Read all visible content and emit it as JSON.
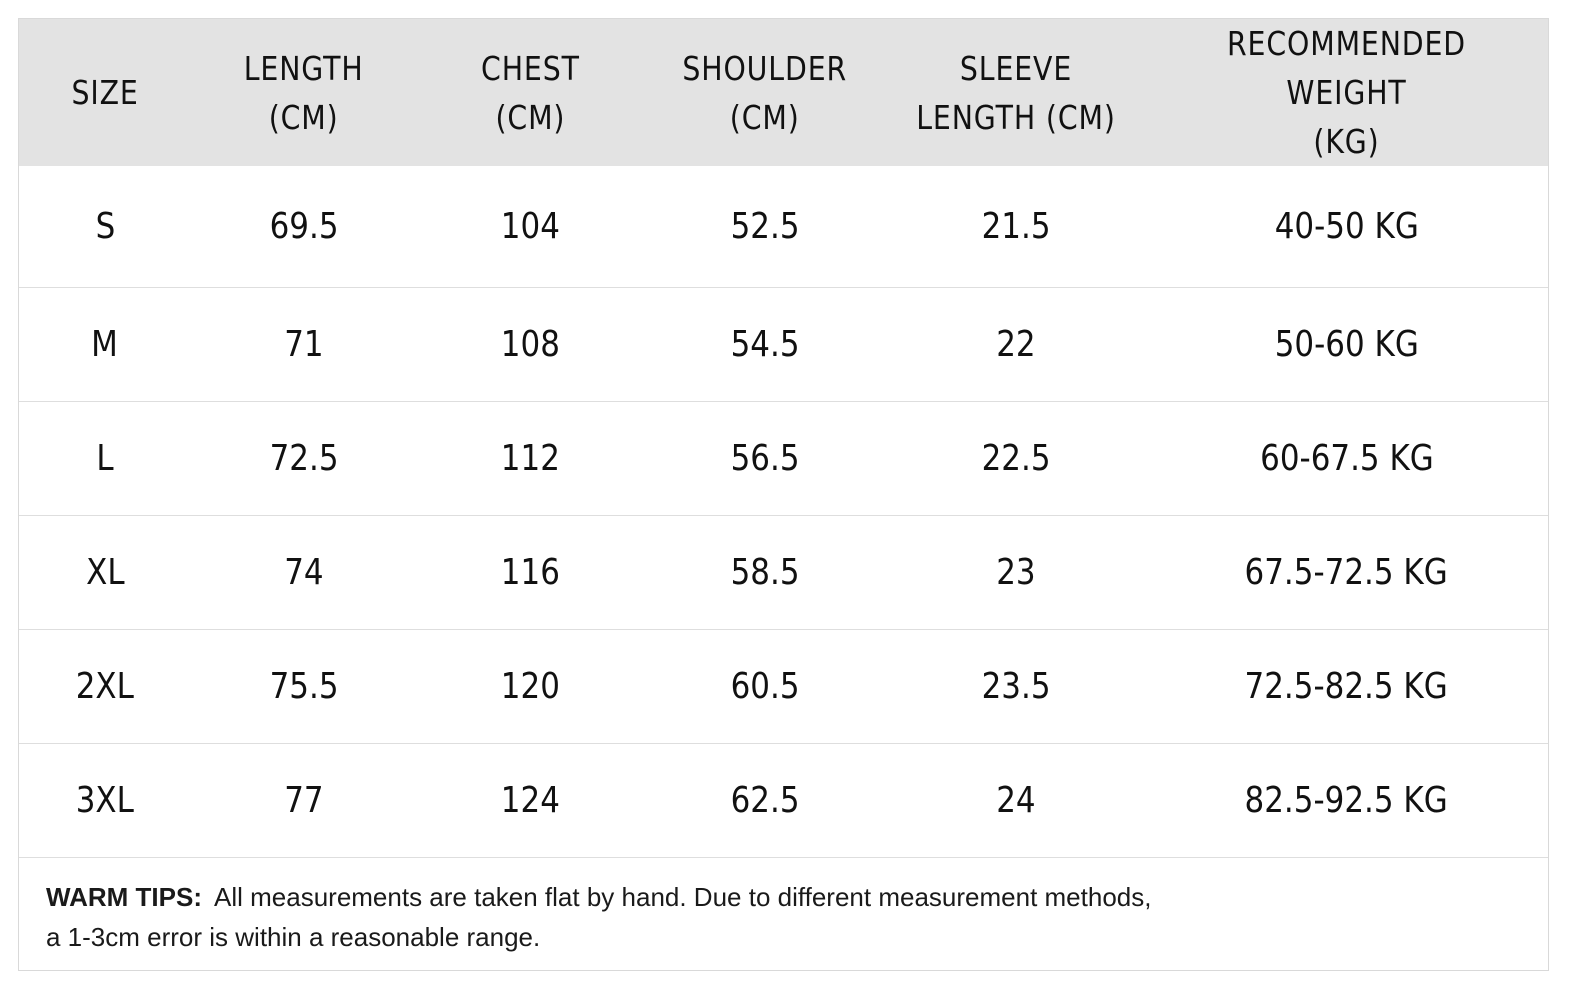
{
  "table": {
    "headers": [
      "SIZE",
      "LENGTH\n(CM)",
      "CHEST\n(CM)",
      "SHOULDER\n(CM)",
      "SLEEVE\nLENGTH (CM)",
      "RECOMMENDED WEIGHT\n(KG)"
    ],
    "rows": [
      [
        "S",
        "69.5",
        "104",
        "52.5",
        "21.5",
        "40-50 KG"
      ],
      [
        "M",
        "71",
        "108",
        "54.5",
        "22",
        "50-60 KG"
      ],
      [
        "L",
        "72.5",
        "112",
        "56.5",
        "22.5",
        "60-67.5 KG"
      ],
      [
        "XL",
        "74",
        "116",
        "58.5",
        "23",
        "67.5-72.5 KG"
      ],
      [
        "2XL",
        "75.5",
        "120",
        "60.5",
        "23.5",
        "72.5-82.5 KG"
      ],
      [
        "3XL",
        "77",
        "124",
        "62.5",
        "24",
        "82.5-92.5 KG"
      ]
    ]
  },
  "tips": {
    "label": "WARM TIPS:",
    "line1": "All measurements are taken flat by hand. Due to different measurement methods,",
    "line2": "a 1-3cm error is within a reasonable range."
  },
  "colors": {
    "header_background": "#e3e3e3",
    "text": "#111111",
    "row_divider": "#dedede"
  }
}
